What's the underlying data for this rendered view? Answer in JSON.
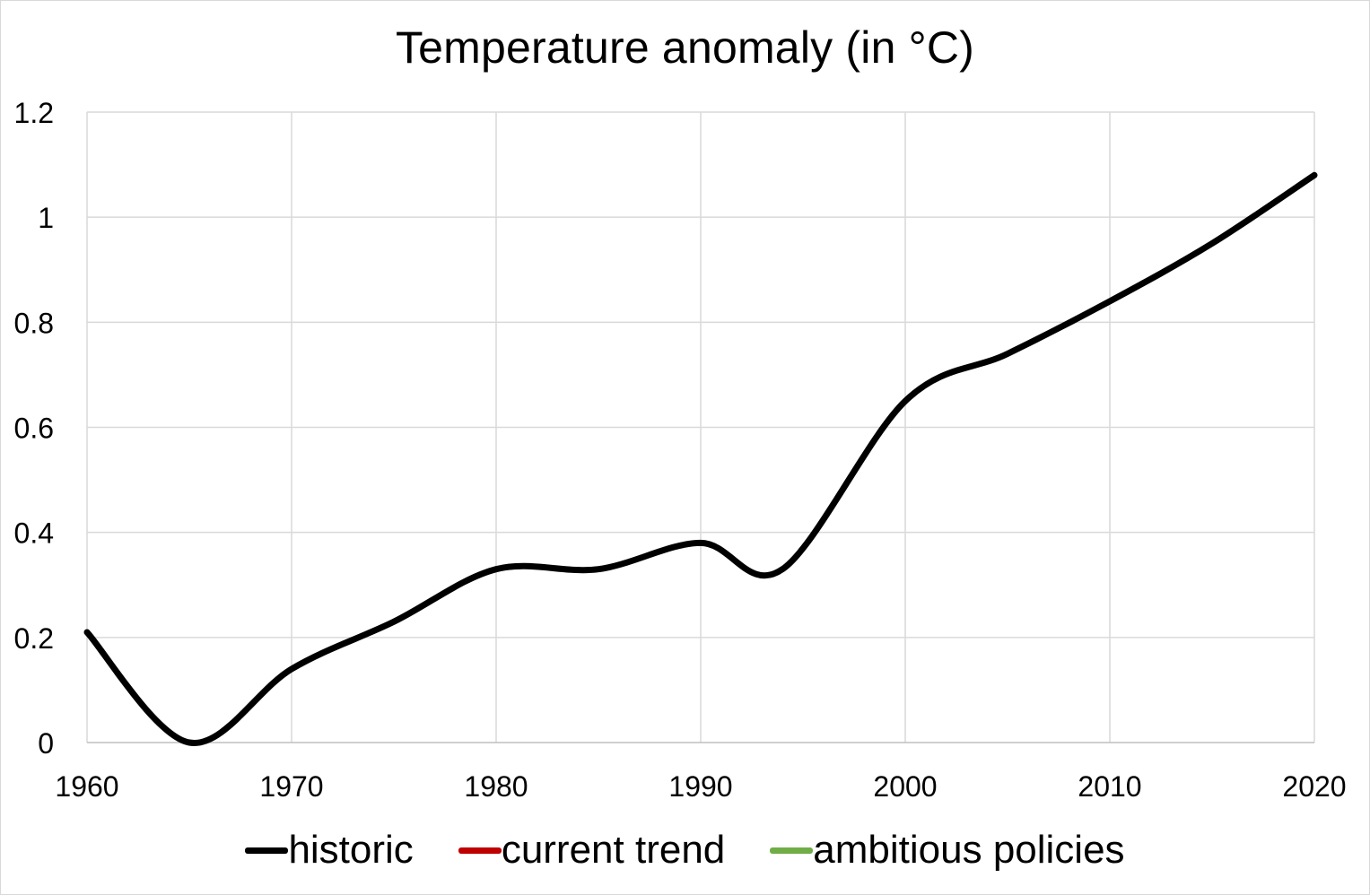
{
  "chart_data": {
    "type": "line",
    "title": "Temperature anomaly (in °C)",
    "xlabel": "",
    "ylabel": "",
    "xlim": [
      1960,
      2020
    ],
    "ylim": [
      0,
      1.2
    ],
    "x_ticks": [
      "1960",
      "1970",
      "1980",
      "1990",
      "2000",
      "2010",
      "2020"
    ],
    "x_tick_values": [
      1960,
      1970,
      1980,
      1990,
      2000,
      2010,
      2020
    ],
    "y_ticks": [
      "0",
      "0.2",
      "0.4",
      "0.6",
      "0.8",
      "1",
      "1.2"
    ],
    "y_tick_values": [
      0,
      0.2,
      0.4,
      0.6,
      0.8,
      1.0,
      1.2
    ],
    "grid": true,
    "legend_position": "bottom",
    "series": [
      {
        "name": "historic",
        "color": "#000000",
        "x": [
          1960,
          1965,
          1970,
          1975,
          1980,
          1985,
          1990,
          1994,
          2000,
          2005,
          2010,
          2015,
          2020
        ],
        "y": [
          0.21,
          0.0,
          0.14,
          0.23,
          0.33,
          0.33,
          0.38,
          0.33,
          0.65,
          0.74,
          0.84,
          0.95,
          1.08
        ]
      },
      {
        "name": "current trend",
        "color": "#c00000",
        "x": [],
        "y": []
      },
      {
        "name": "ambitious policies",
        "color": "#70ad47",
        "x": [],
        "y": []
      }
    ]
  }
}
